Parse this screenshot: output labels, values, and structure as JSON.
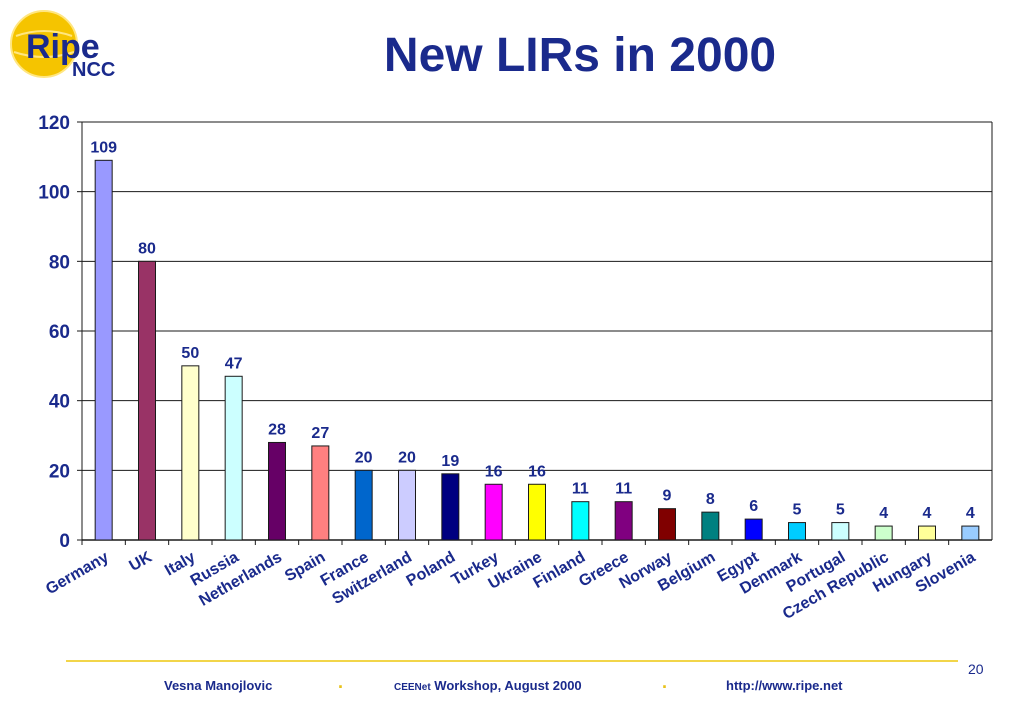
{
  "header": {
    "logo_text_main": "Ripe",
    "logo_text_sub": "NCC",
    "title": "New LIRs in 2000"
  },
  "chart_data": {
    "type": "bar",
    "title": "New LIRs in 2000",
    "xlabel": "",
    "ylabel": "",
    "ylim": [
      0,
      120
    ],
    "yticks": [
      0,
      20,
      40,
      60,
      80,
      100,
      120
    ],
    "grid": true,
    "categories": [
      "Germany",
      "UK",
      "Italy",
      "Russia",
      "Netherlands",
      "Spain",
      "France",
      "Switzerland",
      "Poland",
      "Turkey",
      "Ukraine",
      "Finland",
      "Greece",
      "Norway",
      "Belgium",
      "Egypt",
      "Denmark",
      "Portugal",
      "Czech Republic",
      "Hungary",
      "Slovenia"
    ],
    "values": [
      109,
      80,
      50,
      47,
      28,
      27,
      20,
      20,
      19,
      16,
      16,
      11,
      11,
      9,
      8,
      6,
      5,
      5,
      4,
      4,
      4
    ],
    "bar_colors": [
      "#9999ff",
      "#993366",
      "#ffffcc",
      "#ccffff",
      "#660066",
      "#ff8080",
      "#0066cc",
      "#ccccff",
      "#000080",
      "#ff00ff",
      "#ffff00",
      "#00ffff",
      "#800080",
      "#800000",
      "#008080",
      "#0000ff",
      "#00ccff",
      "#ccffff",
      "#ccffcc",
      "#ffff99",
      "#99ccff"
    ]
  },
  "footer": {
    "author": "Vesna Manojlovic",
    "event_prefix": "CEENet",
    "event_rest": " Workshop, August 2000",
    "url": "http://www.ripe.net",
    "separator": ".",
    "slide_number": "20"
  },
  "colors": {
    "title": "#1a2a8c",
    "accent_line": "#f2d54a",
    "logo_yellow": "#f5c400"
  }
}
